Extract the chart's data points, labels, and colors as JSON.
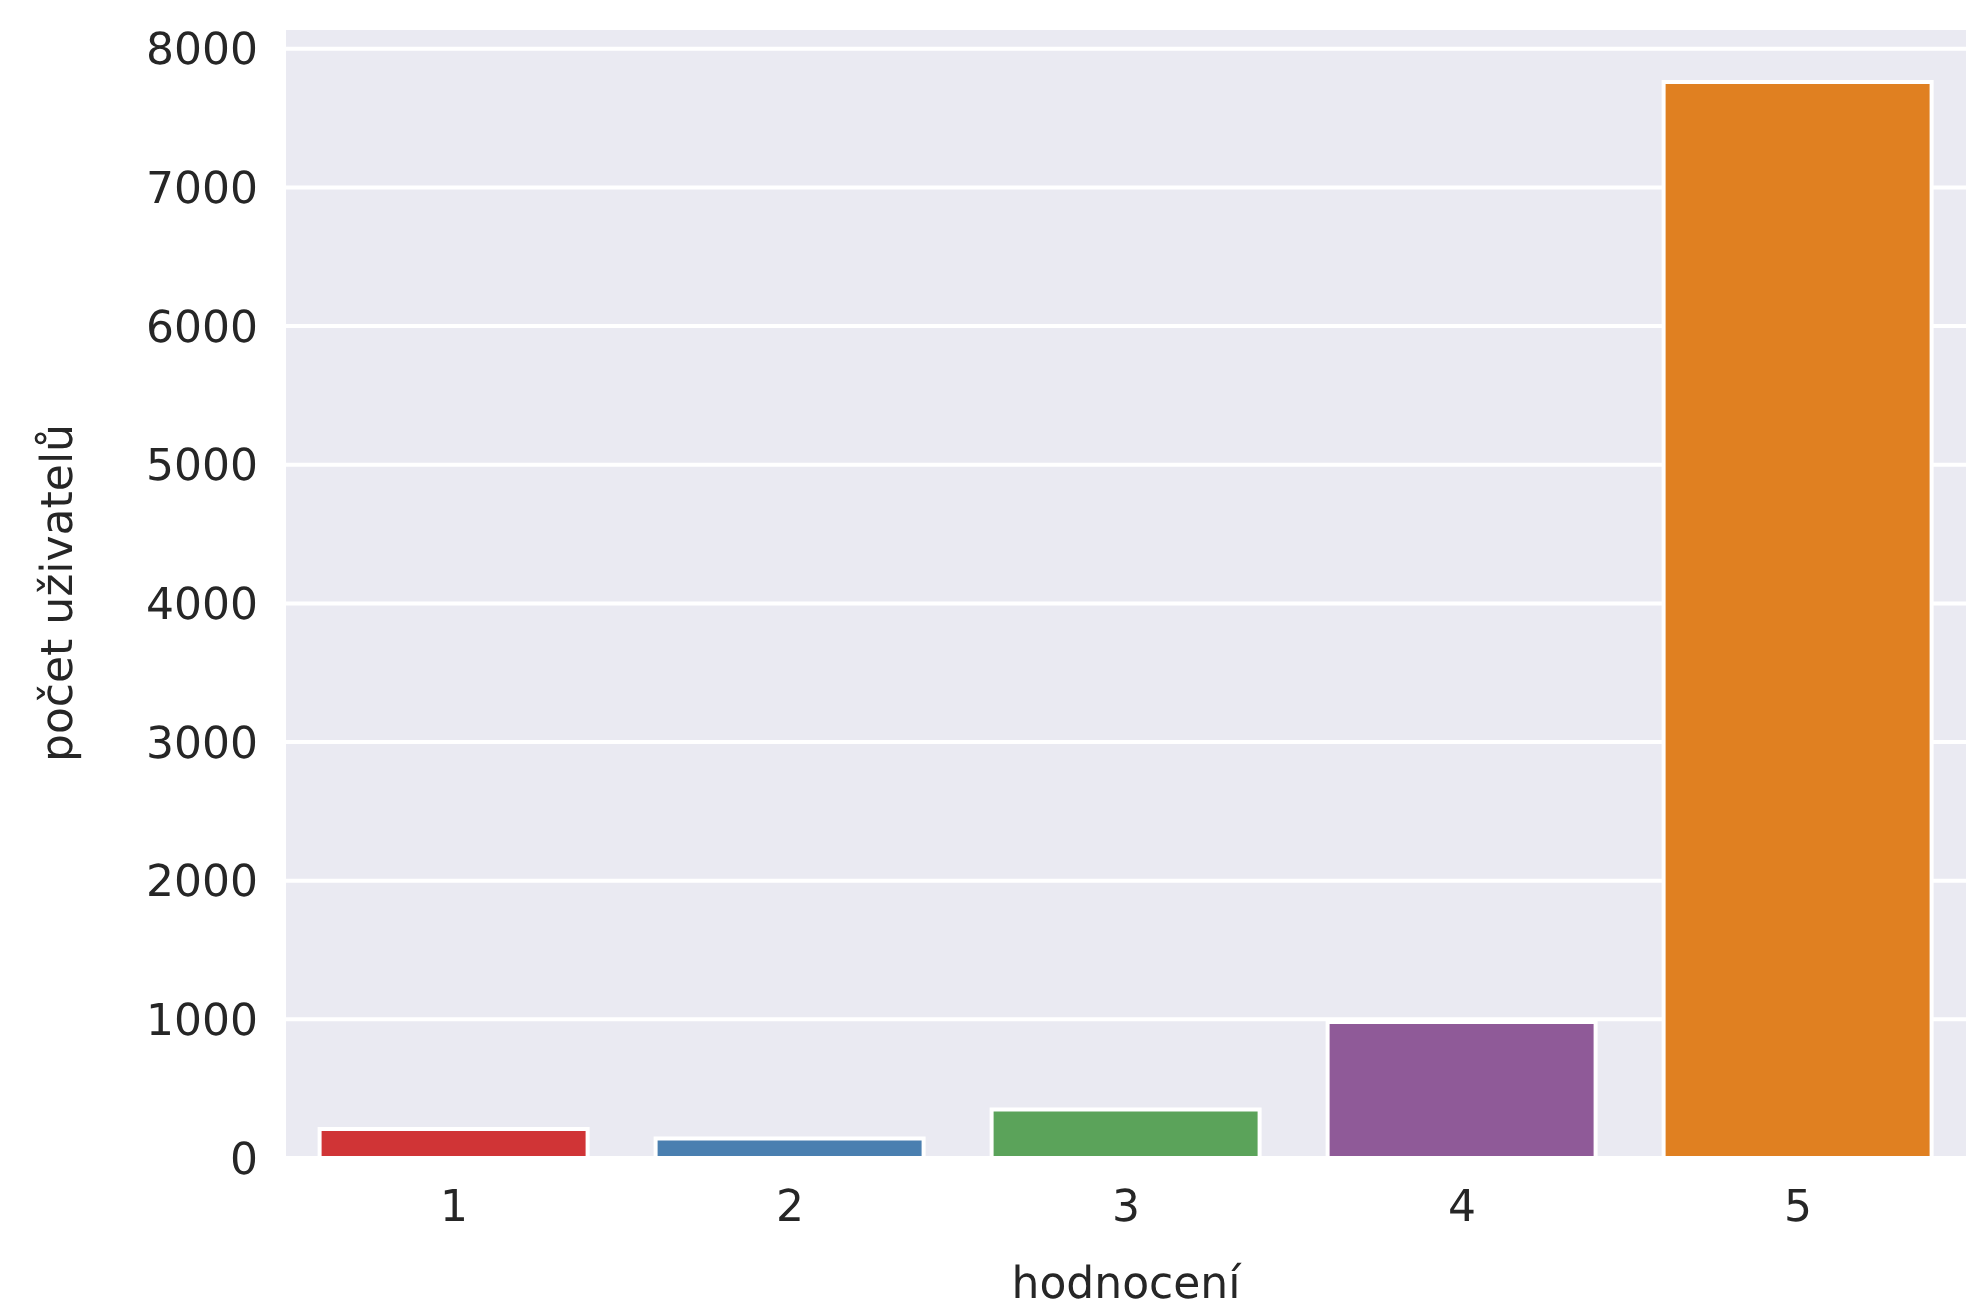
{
  "chart_data": {
    "type": "bar",
    "xlabel": "hodnocení",
    "ylabel": "počet uživatelů",
    "categories": [
      "1",
      "2",
      "3",
      "4",
      "5"
    ],
    "values": [
      210,
      140,
      350,
      980,
      7760
    ],
    "colors": [
      "#d03436",
      "#4a7fb0",
      "#5ba35a",
      "#8f5a98",
      "#e08021"
    ],
    "ylim": [
      0,
      8150
    ],
    "yticks": [
      0,
      1000,
      2000,
      3000,
      4000,
      5000,
      6000,
      7000,
      8000
    ],
    "grid": "y"
  }
}
